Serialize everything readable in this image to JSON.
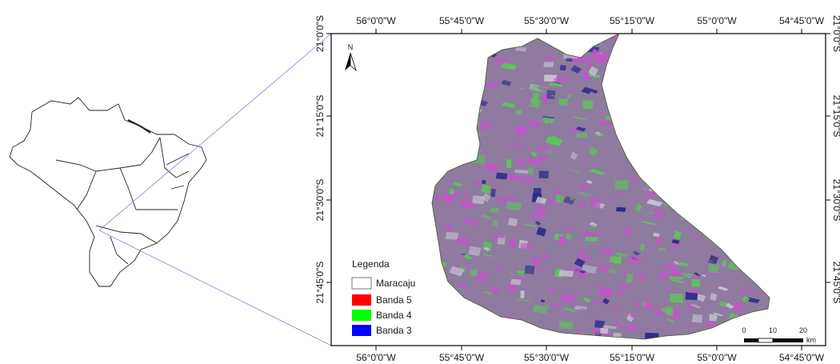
{
  "map": {
    "top_longitude_labels": [
      "56°0'0\"W",
      "55°45'0\"W",
      "55°30'0\"W",
      "55°15'0\"W",
      "55°0'0\"W",
      "54°45'0\"W"
    ],
    "bottom_longitude_labels": [
      "56°0'0\"W",
      "55°45'0\"W",
      "55°30'0\"W",
      "55°15'0\"W",
      "55°0'0\"W",
      "54°45'0\"W"
    ],
    "left_latitude_labels": [
      "21°0'0\"S",
      "21°15'0\"S",
      "21°30'0\"S",
      "21°45'0\"S"
    ],
    "right_latitude_labels": [
      "21°0'0\"S",
      "21°15'0\"S",
      "21°30'0\"S",
      "21°45'0\"S"
    ],
    "north_label": "N",
    "scale_labels": [
      "0",
      "10",
      "20"
    ],
    "scale_unit": "km",
    "legend": {
      "title": "Legenda",
      "items": [
        {
          "label": "Maracaju",
          "color": "#ffffff"
        },
        {
          "label": "Banda 5",
          "color": "#ff0000"
        },
        {
          "label": "Banda 4",
          "color": "#00ff00"
        },
        {
          "label": "Banda 3",
          "color": "#0000ff"
        }
      ]
    },
    "colors": {
      "connector": "#7a86d8",
      "frame": "#000000",
      "imagery_base": "#8f7aa0",
      "pink": "#c255c7",
      "green": "#5fc35a",
      "blue": "#2b2a86",
      "light": "#c8bfd2"
    }
  }
}
